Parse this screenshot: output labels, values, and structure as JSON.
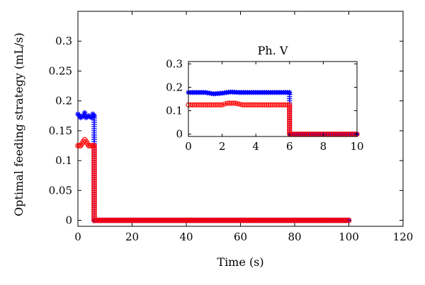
{
  "chart_data": [
    {
      "type": "line",
      "xlabel": "Time (s)",
      "ylabel": "Optimal feeding strategy (mL/s)",
      "xlim": [
        0,
        120
      ],
      "ylim": [
        -0.01,
        0.35
      ],
      "xticks": [
        "0",
        "20",
        "40",
        "60",
        "80",
        "100",
        "120"
      ],
      "yticks": [
        "0",
        "0.05",
        "0.1",
        "0.15",
        "0.2",
        "0.25",
        "0.3"
      ],
      "grid": false,
      "series": [
        {
          "marker": "asterisk",
          "color": "#0000ff",
          "x": [
            0,
            1,
            2,
            2.5,
            3,
            4,
            5,
            5.5,
            6,
            6.01,
            20,
            40,
            60,
            80,
            100
          ],
          "y": [
            0.178,
            0.172,
            0.175,
            0.18,
            0.172,
            0.175,
            0.172,
            0.178,
            0.175,
            0,
            0,
            0,
            0,
            0,
            0
          ]
        },
        {
          "marker": "circle",
          "color": "#ff0000",
          "x": [
            0,
            1,
            2,
            2.5,
            3,
            4,
            5,
            6,
            6.01,
            20,
            40,
            60,
            80,
            100
          ],
          "y": [
            0.125,
            0.125,
            0.132,
            0.135,
            0.132,
            0.125,
            0.125,
            0.125,
            0,
            0,
            0,
            0,
            0,
            0
          ]
        }
      ]
    },
    {
      "type": "line",
      "title": "Ph. V",
      "xlim": [
        0,
        10
      ],
      "ylim": [
        -0.01,
        0.31
      ],
      "xticks": [
        "0",
        "2",
        "4",
        "6",
        "8",
        "10"
      ],
      "yticks": [
        "0",
        "0.1",
        "0.2",
        "0.3"
      ],
      "grid": false,
      "series": [
        {
          "marker": "asterisk",
          "color": "#0000ff",
          "x": [
            0,
            1,
            1.5,
            2,
            2.5,
            3,
            4,
            5,
            5.5,
            6,
            6.01,
            7,
            8,
            9,
            10
          ],
          "y": [
            0.178,
            0.178,
            0.172,
            0.175,
            0.18,
            0.178,
            0.178,
            0.178,
            0.178,
            0.178,
            0,
            0,
            0,
            0,
            0
          ]
        },
        {
          "marker": "circle",
          "color": "#ff0000",
          "x": [
            0,
            1,
            2,
            2.3,
            2.8,
            3.2,
            4,
            5,
            6,
            6.01,
            7,
            8,
            9,
            10
          ],
          "y": [
            0.125,
            0.125,
            0.125,
            0.132,
            0.132,
            0.125,
            0.125,
            0.125,
            0.125,
            0,
            0,
            0,
            0,
            0
          ]
        }
      ]
    }
  ]
}
